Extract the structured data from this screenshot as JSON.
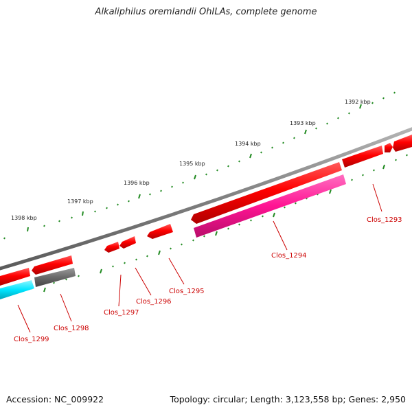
{
  "title": "Alkaliphilus oremlandii OhILAs, complete genome",
  "footer": {
    "accession": "Accession: NC_009922",
    "summary": "Topology: circular; Length: 3,123,558 bp; Genes: 2,950"
  },
  "ticks": [
    {
      "label": "1392 kbp"
    },
    {
      "label": "1393 kbp"
    },
    {
      "label": "1394 kbp"
    },
    {
      "label": "1395 kbp"
    },
    {
      "label": "1396 kbp"
    },
    {
      "label": "1397 kbp"
    },
    {
      "label": "1398 kbp"
    }
  ],
  "genes": [
    {
      "label": "Clos_1293"
    },
    {
      "label": "Clos_1294"
    },
    {
      "label": "Clos_1295"
    },
    {
      "label": "Clos_1296"
    },
    {
      "label": "Clos_1297"
    },
    {
      "label": "Clos_1298"
    },
    {
      "label": "Clos_1299"
    }
  ],
  "colors": {
    "backbone": "#808080",
    "gene": "#ff0000",
    "cds_feature": "#ff1493",
    "cds_feature_alt": "#696969",
    "cds_feature_cyan": "#00e5ff",
    "tick": "#228b22",
    "label": "#cc0000"
  }
}
